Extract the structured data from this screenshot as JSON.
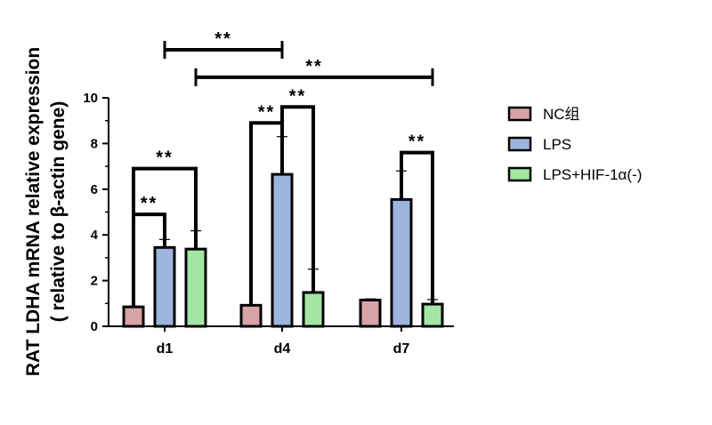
{
  "chart_data": {
    "type": "bar",
    "ylabel_line1": "RAT LDHA mRNA relative expression",
    "ylabel_line2": "( relative to β-actin gene)",
    "ylim": [
      0,
      10
    ],
    "yticks": [
      "0",
      "2",
      "4",
      "6",
      "8",
      "10"
    ],
    "categories": [
      "d1",
      "d4",
      "d7"
    ],
    "series": [
      {
        "name": "NC组",
        "color": "#d8a3a6",
        "values": [
          0.85,
          0.92,
          1.15
        ],
        "errors": [
          0.03,
          0.03,
          0.05
        ]
      },
      {
        "name": "LPS",
        "color": "#9db4de",
        "values": [
          3.45,
          6.65,
          5.55
        ],
        "errors": [
          0.35,
          1.65,
          1.25
        ]
      },
      {
        "name": "LPS+HIF-1α(-)",
        "color": "#a3e6a3",
        "values": [
          3.38,
          1.48,
          0.97
        ],
        "errors": [
          0.8,
          1.02,
          0.2
        ]
      }
    ],
    "legend_position": "right",
    "significance": [
      {
        "label": "**",
        "from": [
          0,
          0
        ],
        "to": [
          0,
          1
        ],
        "level": 4.9
      },
      {
        "label": "**",
        "from": [
          0,
          0
        ],
        "to": [
          0,
          2
        ],
        "level": 6.9
      },
      {
        "label": "**",
        "from": [
          1,
          0
        ],
        "to": [
          1,
          1
        ],
        "level": 8.9
      },
      {
        "label": "**",
        "from": [
          1,
          1
        ],
        "to": [
          1,
          2
        ],
        "level": 9.6
      },
      {
        "label": "**",
        "from": [
          2,
          1
        ],
        "to": [
          2,
          2
        ],
        "level": 7.6
      },
      {
        "label": "**",
        "from": [
          0,
          1
        ],
        "to": [
          1,
          1
        ],
        "level": 12.1,
        "style": "capped"
      },
      {
        "label": "**",
        "from": [
          0,
          2
        ],
        "to": [
          2,
          2
        ],
        "level": 10.9,
        "style": "capped"
      }
    ]
  }
}
